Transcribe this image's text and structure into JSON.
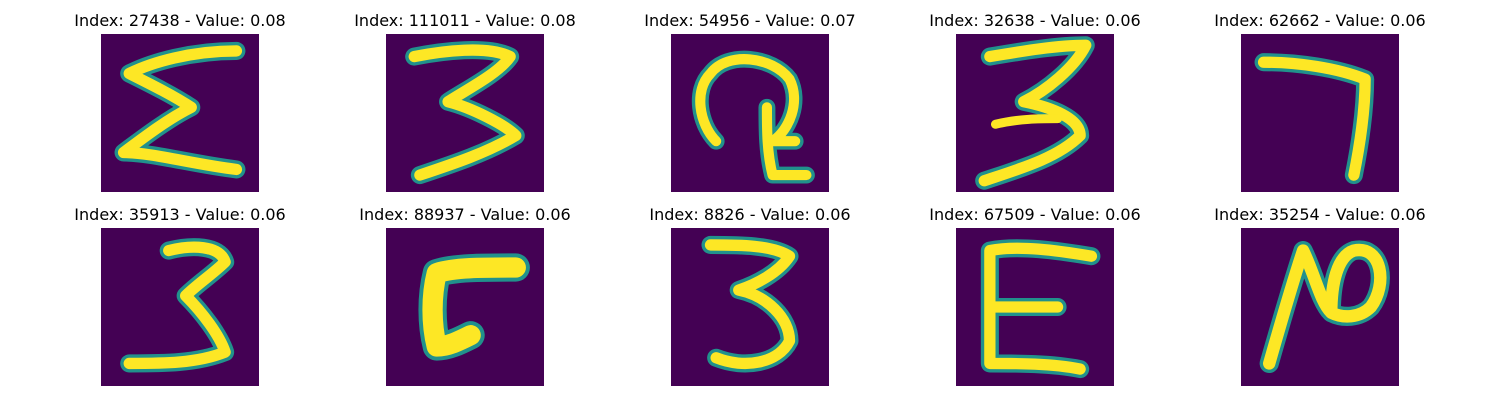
{
  "figure": {
    "background": "#ffffff",
    "colormap": {
      "low": "#440154",
      "mid": "#21918c",
      "high": "#fde725"
    },
    "panels": [
      {
        "title": "Index: 27438 - Value: 0.08",
        "index": 27438,
        "value": 0.08,
        "glyph": "epsilon"
      },
      {
        "title": "Index: 111011 - Value: 0.08",
        "index": 111011,
        "value": 0.08,
        "glyph": "three-flat"
      },
      {
        "title": "Index: 54956 - Value: 0.07",
        "index": 54956,
        "value": 0.07,
        "glyph": "loop"
      },
      {
        "title": "Index: 32638 - Value: 0.06",
        "index": 32638,
        "value": 0.06,
        "glyph": "three-flat-top"
      },
      {
        "title": "Index: 62662 - Value: 0.06",
        "index": 62662,
        "value": 0.06,
        "glyph": "seven"
      },
      {
        "title": "Index: 35913 - Value: 0.06",
        "index": 35913,
        "value": 0.06,
        "glyph": "three"
      },
      {
        "title": "Index: 88937 - Value: 0.06",
        "index": 88937,
        "value": 0.06,
        "glyph": "c-block"
      },
      {
        "title": "Index: 8826 - Value: 0.06",
        "index": 8826,
        "value": 0.06,
        "glyph": "three-round"
      },
      {
        "title": "Index: 67509 - Value: 0.06",
        "index": 67509,
        "value": 0.06,
        "glyph": "e"
      },
      {
        "title": "Index: 35254 - Value: 0.06",
        "index": 35254,
        "value": 0.06,
        "glyph": "n-loop"
      }
    ]
  }
}
